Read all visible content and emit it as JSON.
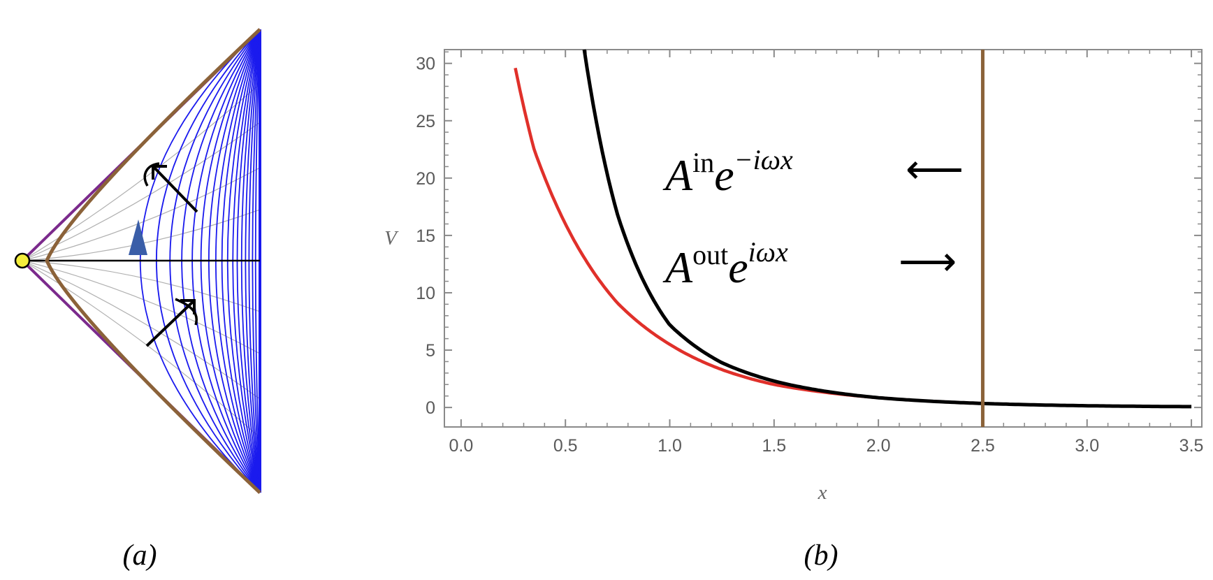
{
  "panel_labels": {
    "a": "(a)",
    "b": "(b)"
  },
  "chart_data": {
    "type": "line",
    "xlabel": "x",
    "ylabel": "V",
    "xlim": [
      -0.08,
      3.55
    ],
    "ylim": [
      -1.7,
      31.2
    ],
    "xticks": [
      "0.0",
      "0.5",
      "1.0",
      "1.5",
      "2.0",
      "2.5",
      "3.0",
      "3.5"
    ],
    "yticks": [
      "0",
      "5",
      "10",
      "15",
      "20",
      "25",
      "30"
    ],
    "series": [
      {
        "key": "red",
        "color": "#e0302a",
        "x_range": [
          0.26,
          2.5
        ],
        "x": [
          0.26,
          0.35,
          0.5,
          0.75,
          1.0,
          1.25,
          1.5,
          2.0,
          2.5
        ],
        "values": [
          29.6,
          22.5,
          16.0,
          9.1,
          5.5,
          3.3,
          2.0,
          0.85,
          0.35
        ]
      },
      {
        "key": "black",
        "color": "#000000",
        "x_range": [
          0.59,
          3.5
        ],
        "x": [
          0.59,
          0.75,
          1.0,
          1.25,
          1.5,
          2.0,
          2.5,
          3.0,
          3.5
        ],
        "values": [
          31.2,
          16.8,
          7.2,
          3.9,
          2.3,
          0.85,
          0.35,
          0.15,
          0.07
        ]
      }
    ],
    "vline": {
      "x": 2.5,
      "color": "#8b6239"
    },
    "grid": false,
    "annotations": {
      "in": {
        "A": "A",
        "sup": "in",
        "e": "e",
        "exp": "−iωx",
        "arrow": "⟵"
      },
      "out": {
        "A": "A",
        "sup": "out",
        "e": "e",
        "exp": "iωx",
        "arrow": "⟶"
      }
    }
  },
  "diagram_a": {
    "colors": {
      "boundary": "#8b6239",
      "edge": "#7b2a8c",
      "curves": "#1a1aee",
      "faint": "#b0b0b0",
      "marker": "#3a5ea8",
      "point": "#f4ee3c"
    }
  }
}
